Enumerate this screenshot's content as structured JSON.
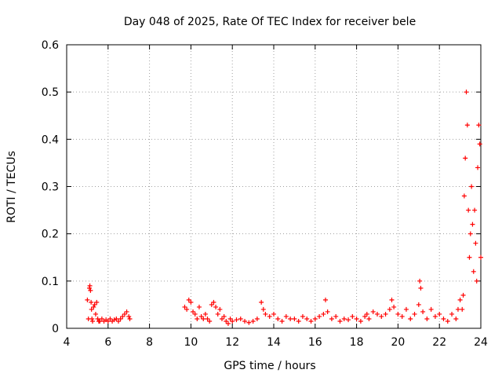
{
  "chart_data": {
    "type": "scatter",
    "title": "Day 048 of 2025, Rate Of TEC Index for receiver bele",
    "xlabel": "GPS time / hours",
    "ylabel": "ROTI / TECUs",
    "xlim": [
      4,
      24
    ],
    "ylim": [
      0,
      0.6
    ],
    "xticks": [
      "4",
      "6",
      "8",
      "10",
      "12",
      "14",
      "16",
      "18",
      "20",
      "22",
      "24"
    ],
    "yticks": [
      "0",
      "0.1",
      "0.2",
      "0.3",
      "0.4",
      "0.5",
      "0.6"
    ],
    "grid": true,
    "marker": "+",
    "color": "#ff0000",
    "series": [
      {
        "x": [
          5.0,
          5.05,
          5.1,
          5.12,
          5.15,
          5.18,
          5.2,
          5.22,
          5.25,
          5.3,
          5.35,
          5.4,
          5.45,
          5.5,
          5.55,
          5.6,
          5.7,
          5.8,
          5.9,
          6.0,
          6.1,
          6.2,
          6.3,
          6.4,
          6.5,
          6.6,
          6.7,
          6.8,
          6.9,
          7.0,
          7.05,
          9.7,
          9.8,
          9.9,
          10.0,
          10.1,
          10.2,
          10.3,
          10.4,
          10.5,
          10.6,
          10.7,
          10.8,
          10.9,
          11.0,
          11.1,
          11.2,
          11.3,
          11.4,
          11.5,
          11.6,
          11.7,
          11.8,
          11.9,
          12.0,
          12.2,
          12.4,
          12.6,
          12.8,
          13.0,
          13.2,
          13.4,
          13.5,
          13.6,
          13.8,
          14.0,
          14.2,
          14.4,
          14.6,
          14.8,
          15.0,
          15.2,
          15.4,
          15.6,
          15.8,
          16.0,
          16.2,
          16.4,
          16.5,
          16.6,
          16.8,
          17.0,
          17.2,
          17.4,
          17.6,
          17.8,
          18.0,
          18.2,
          18.4,
          18.5,
          18.6,
          18.8,
          19.0,
          19.2,
          19.4,
          19.6,
          19.7,
          19.8,
          20.0,
          20.2,
          20.4,
          20.6,
          20.8,
          21.0,
          21.05,
          21.1,
          21.2,
          21.4,
          21.6,
          21.8,
          22.0,
          22.2,
          22.4,
          22.6,
          22.8,
          22.9,
          23.0,
          23.1,
          23.15,
          23.2,
          23.25,
          23.3,
          23.35,
          23.4,
          23.45,
          23.5,
          23.55,
          23.6,
          23.65,
          23.7,
          23.75,
          23.8,
          23.85,
          23.9,
          23.95,
          24.0
        ],
        "y": [
          0.06,
          0.02,
          0.085,
          0.09,
          0.08,
          0.055,
          0.04,
          0.02,
          0.015,
          0.045,
          0.05,
          0.03,
          0.055,
          0.02,
          0.015,
          0.015,
          0.02,
          0.015,
          0.018,
          0.015,
          0.02,
          0.015,
          0.018,
          0.02,
          0.015,
          0.02,
          0.025,
          0.03,
          0.035,
          0.025,
          0.02,
          0.045,
          0.04,
          0.06,
          0.055,
          0.035,
          0.03,
          0.02,
          0.045,
          0.025,
          0.02,
          0.03,
          0.02,
          0.015,
          0.05,
          0.055,
          0.045,
          0.03,
          0.04,
          0.02,
          0.025,
          0.015,
          0.01,
          0.02,
          0.015,
          0.018,
          0.02,
          0.015,
          0.012,
          0.015,
          0.02,
          0.055,
          0.04,
          0.03,
          0.025,
          0.03,
          0.02,
          0.015,
          0.025,
          0.02,
          0.02,
          0.015,
          0.025,
          0.02,
          0.015,
          0.02,
          0.025,
          0.03,
          0.06,
          0.035,
          0.02,
          0.025,
          0.015,
          0.02,
          0.018,
          0.025,
          0.02,
          0.015,
          0.025,
          0.03,
          0.02,
          0.035,
          0.03,
          0.025,
          0.03,
          0.04,
          0.06,
          0.045,
          0.03,
          0.025,
          0.04,
          0.02,
          0.03,
          0.05,
          0.1,
          0.085,
          0.035,
          0.02,
          0.04,
          0.025,
          0.03,
          0.02,
          0.015,
          0.03,
          0.02,
          0.04,
          0.06,
          0.04,
          0.07,
          0.28,
          0.36,
          0.5,
          0.43,
          0.25,
          0.15,
          0.2,
          0.3,
          0.22,
          0.12,
          0.25,
          0.18,
          0.1,
          0.34,
          0.43,
          0.39,
          0.15
        ]
      }
    ]
  }
}
